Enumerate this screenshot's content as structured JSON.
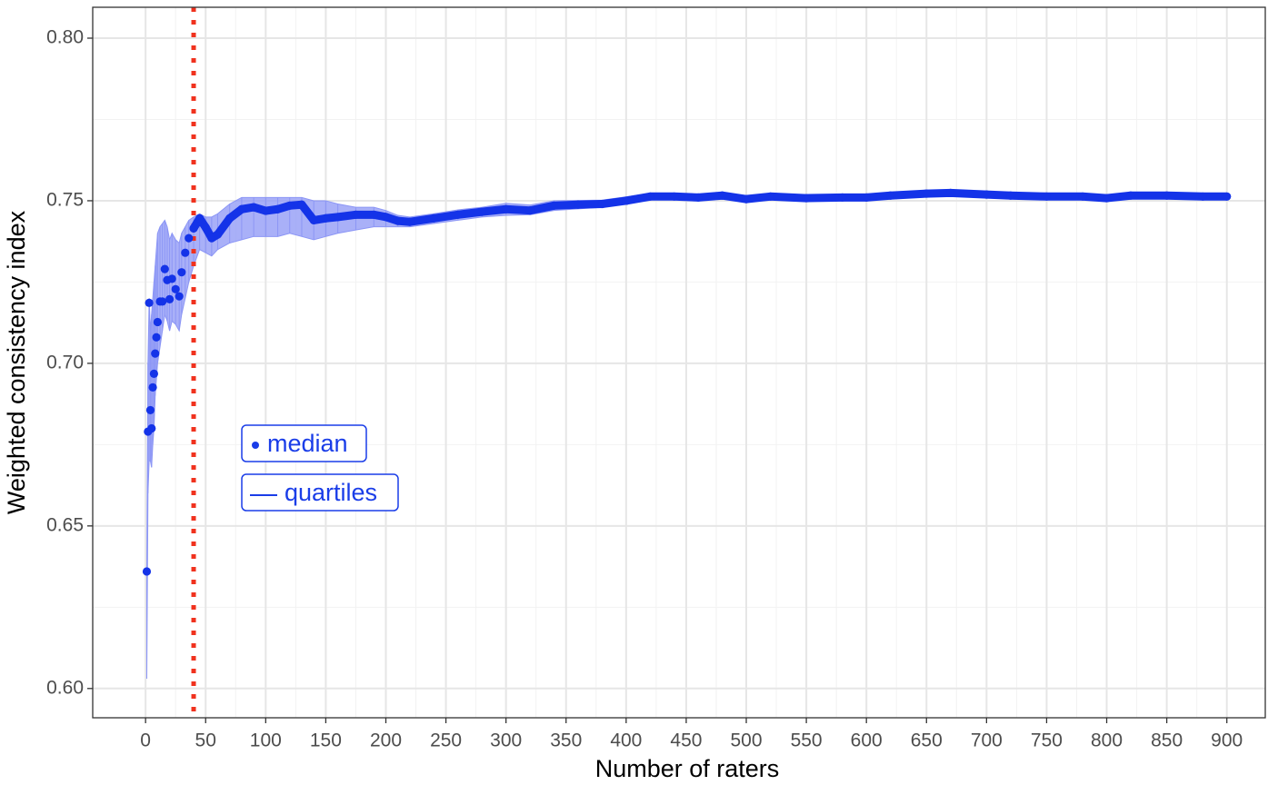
{
  "chart_data": {
    "type": "scatter",
    "x_label": "Number of raters",
    "y_label": "Weighted consistency index",
    "xlim": [
      -44,
      932
    ],
    "ylim": [
      0.591,
      0.8095
    ],
    "xticks": [
      0,
      50,
      100,
      150,
      200,
      250,
      300,
      350,
      400,
      450,
      500,
      550,
      600,
      650,
      700,
      750,
      800,
      850,
      900
    ],
    "yticks": [
      {
        "value": 0.6,
        "label": "0.60"
      },
      0.65,
      {
        "value": 0.7,
        "label": "0.70"
      },
      0.75,
      {
        "value": 0.8,
        "label": "0.80"
      }
    ],
    "grid": true,
    "reference_line_x": 40,
    "reference_line_color": "#f0321e",
    "x": [
      1,
      2,
      3,
      4,
      5,
      6,
      7,
      8,
      9,
      10,
      12,
      14,
      16,
      18,
      20,
      22,
      25,
      28,
      30,
      33,
      36,
      40,
      45,
      50,
      55,
      60,
      70,
      80,
      90,
      100,
      110,
      120,
      130,
      140,
      150,
      160,
      175,
      190,
      200,
      210,
      220,
      240,
      260,
      280,
      300,
      320,
      340,
      360,
      380,
      400,
      420,
      440,
      460,
      480,
      500,
      520,
      550,
      580,
      600,
      620,
      650,
      670,
      700,
      720,
      750,
      780,
      800,
      820,
      850,
      880,
      900
    ],
    "series": [
      {
        "name": "median",
        "color": "#1433e8",
        "values": [
          0.636,
          0.679,
          0.7186,
          0.6856,
          0.68,
          0.6926,
          0.6968,
          0.703,
          0.708,
          0.7127,
          0.719,
          0.719,
          0.729,
          0.7256,
          0.7197,
          0.726,
          0.7228,
          0.7206,
          0.728,
          0.734,
          0.7385,
          0.7415,
          0.7446,
          0.7418,
          0.7385,
          0.7396,
          0.7446,
          0.7474,
          0.748,
          0.7469,
          0.7474,
          0.7485,
          0.7488,
          0.744,
          0.7446,
          0.745,
          0.7457,
          0.7457,
          0.745,
          0.7438,
          0.7435,
          0.7446,
          0.7457,
          0.7466,
          0.7474,
          0.747,
          0.7485,
          0.7488,
          0.749,
          0.75,
          0.7513,
          0.7513,
          0.751,
          0.7516,
          0.7505,
          0.7513,
          0.7508,
          0.751,
          0.751,
          0.7516,
          0.7522,
          0.7524,
          0.7519,
          0.7516,
          0.7513,
          0.7513,
          0.7508,
          0.7516,
          0.7516,
          0.7513,
          0.7513
        ]
      },
      {
        "name": "quartiles",
        "color": "#8c96f5",
        "lower": [
          0.603,
          0.66,
          0.67,
          0.67,
          0.668,
          0.675,
          0.68,
          0.69,
          0.695,
          0.7,
          0.705,
          0.71,
          0.715,
          0.713,
          0.71,
          0.713,
          0.712,
          0.71,
          0.715,
          0.72,
          0.725,
          0.73,
          0.735,
          0.734,
          0.733,
          0.735,
          0.737,
          0.738,
          0.739,
          0.739,
          0.739,
          0.74,
          0.739,
          0.738,
          0.739,
          0.74,
          0.741,
          0.742,
          0.742,
          0.742,
          0.742,
          0.743,
          0.744,
          0.745,
          0.7455,
          0.7457,
          0.747,
          0.7475,
          0.748,
          0.749,
          0.7503,
          0.7504,
          0.7502,
          0.7507,
          0.7497,
          0.7505,
          0.7501,
          0.7503,
          0.7503,
          0.7509,
          0.7515,
          0.7517,
          0.7512,
          0.751,
          0.7507,
          0.7507,
          0.7503,
          0.7511,
          0.7511,
          0.7508,
          0.7509
        ],
        "upper": [
          0.636,
          0.7,
          0.72,
          0.71,
          0.715,
          0.72,
          0.725,
          0.73,
          0.735,
          0.74,
          0.742,
          0.743,
          0.744,
          0.742,
          0.738,
          0.74,
          0.738,
          0.737,
          0.74,
          0.742,
          0.744,
          0.745,
          0.746,
          0.745,
          0.745,
          0.746,
          0.749,
          0.751,
          0.751,
          0.751,
          0.751,
          0.751,
          0.751,
          0.75,
          0.75,
          0.749,
          0.748,
          0.748,
          0.747,
          0.7455,
          0.745,
          0.746,
          0.7472,
          0.748,
          0.7492,
          0.7487,
          0.75,
          0.7501,
          0.7502,
          0.7512,
          0.7523,
          0.7522,
          0.7518,
          0.7525,
          0.7513,
          0.7521,
          0.7515,
          0.7517,
          0.7517,
          0.7523,
          0.7529,
          0.7531,
          0.7526,
          0.7522,
          0.7519,
          0.7519,
          0.7513,
          0.7521,
          0.7521,
          0.7518,
          0.7517
        ]
      }
    ]
  }
}
